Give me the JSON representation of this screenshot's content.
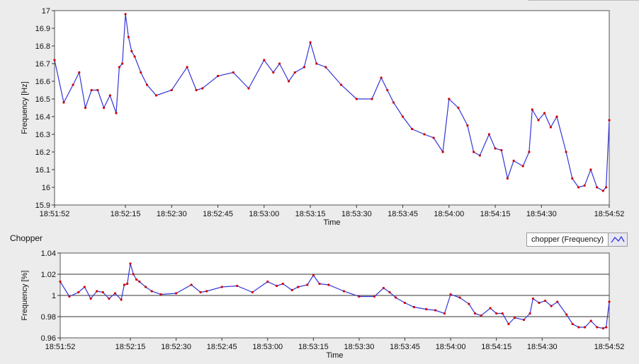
{
  "colors": {
    "line": "#3535d8",
    "marker": "#d00000",
    "plot_bg": "#ffffff",
    "panel_bg": "#ececec",
    "grid": "#333333"
  },
  "chart_data": [
    {
      "type": "line",
      "name_text": "",
      "xlabel": "Time",
      "ylabel": "Frequency [Hz]",
      "ylim": [
        15.9,
        17.0
      ],
      "yticks": [
        "15.9",
        "16",
        "16.1",
        "16.2",
        "16.3",
        "16.4",
        "16.5",
        "16.6",
        "16.7",
        "16.8",
        "16.9",
        "17"
      ],
      "xticks": [
        "18:51:52",
        "18:52:15",
        "18:52:30",
        "18:52:45",
        "18:53:00",
        "18:53:15",
        "18:53:30",
        "18:53:45",
        "18:54:00",
        "18:54:15",
        "18:54:30",
        "18:54:52"
      ],
      "xlim": [
        "18:51:52",
        "18:54:52"
      ],
      "grid": false,
      "series": [
        {
          "x": [
            "18:51:52",
            "18:51:55",
            "18:51:58",
            "18:52:00",
            "18:52:02",
            "18:52:04",
            "18:52:06",
            "18:52:08",
            "18:52:10",
            "18:52:12",
            "18:52:13",
            "18:52:14",
            "18:52:15",
            "18:52:16",
            "18:52:17",
            "18:52:18",
            "18:52:20",
            "18:52:22",
            "18:52:25",
            "18:52:30",
            "18:52:35",
            "18:52:38",
            "18:52:40",
            "18:52:45",
            "18:52:50",
            "18:52:55",
            "18:53:00",
            "18:53:03",
            "18:53:05",
            "18:53:08",
            "18:53:10",
            "18:53:13",
            "18:53:15",
            "18:53:17",
            "18:53:20",
            "18:53:25",
            "18:53:30",
            "18:53:35",
            "18:53:38",
            "18:53:40",
            "18:53:42",
            "18:53:45",
            "18:53:48",
            "18:53:52",
            "18:53:55",
            "18:53:58",
            "18:54:00",
            "18:54:03",
            "18:54:06",
            "18:54:08",
            "18:54:10",
            "18:54:13",
            "18:54:15",
            "18:54:17",
            "18:54:19",
            "18:54:21",
            "18:54:24",
            "18:54:26",
            "18:54:27",
            "18:54:29",
            "18:54:31",
            "18:54:33",
            "18:54:35",
            "18:54:38",
            "18:54:40",
            "18:54:42",
            "18:54:44",
            "18:54:46",
            "18:54:48",
            "18:54:50",
            "18:54:51",
            "18:54:52"
          ],
          "values": [
            16.72,
            16.48,
            16.58,
            16.65,
            16.45,
            16.55,
            16.55,
            16.45,
            16.52,
            16.42,
            16.68,
            16.7,
            16.98,
            16.85,
            16.77,
            16.74,
            16.65,
            16.58,
            16.52,
            16.55,
            16.68,
            16.55,
            16.56,
            16.63,
            16.65,
            16.56,
            16.72,
            16.65,
            16.7,
            16.6,
            16.65,
            16.68,
            16.82,
            16.7,
            16.68,
            16.58,
            16.5,
            16.5,
            16.62,
            16.55,
            16.48,
            16.4,
            16.33,
            16.3,
            16.28,
            16.2,
            16.5,
            16.45,
            16.35,
            16.2,
            16.18,
            16.3,
            16.22,
            16.21,
            16.05,
            16.15,
            16.12,
            16.2,
            16.44,
            16.38,
            16.42,
            16.34,
            16.4,
            16.2,
            16.05,
            16.0,
            16.01,
            16.1,
            16.0,
            15.98,
            16.0,
            16.38
          ]
        }
      ]
    },
    {
      "type": "line",
      "title": "Chopper",
      "xlabel": "Time",
      "ylabel": "Frequency [%]",
      "ylim": [
        0.96,
        1.04
      ],
      "yticks": [
        "0.96",
        "0.98",
        "1",
        "1.02",
        "1.04"
      ],
      "xticks": [
        "18:51:52",
        "18:52:15",
        "18:52:30",
        "18:52:45",
        "18:53:00",
        "18:53:15",
        "18:53:30",
        "18:53:45",
        "18:54:00",
        "18:54:15",
        "18:54:30",
        "18:54:52"
      ],
      "xlim": [
        "18:51:52",
        "18:54:52"
      ],
      "grid": true,
      "legend": {
        "label": "chopper (Frequency)",
        "position": "top-right"
      },
      "series": [
        {
          "name": "chopper (Frequency)",
          "x": [
            "18:51:52",
            "18:51:55",
            "18:51:58",
            "18:52:00",
            "18:52:02",
            "18:52:04",
            "18:52:06",
            "18:52:08",
            "18:52:10",
            "18:52:12",
            "18:52:13",
            "18:52:14",
            "18:52:15",
            "18:52:16",
            "18:52:17",
            "18:52:18",
            "18:52:20",
            "18:52:22",
            "18:52:25",
            "18:52:30",
            "18:52:35",
            "18:52:38",
            "18:52:40",
            "18:52:45",
            "18:52:50",
            "18:52:55",
            "18:53:00",
            "18:53:03",
            "18:53:05",
            "18:53:08",
            "18:53:10",
            "18:53:13",
            "18:53:15",
            "18:53:17",
            "18:53:20",
            "18:53:25",
            "18:53:30",
            "18:53:35",
            "18:53:38",
            "18:53:40",
            "18:53:42",
            "18:53:45",
            "18:53:48",
            "18:53:52",
            "18:53:55",
            "18:53:58",
            "18:54:00",
            "18:54:03",
            "18:54:06",
            "18:54:08",
            "18:54:10",
            "18:54:13",
            "18:54:15",
            "18:54:17",
            "18:54:19",
            "18:54:21",
            "18:54:24",
            "18:54:26",
            "18:54:27",
            "18:54:29",
            "18:54:31",
            "18:54:33",
            "18:54:35",
            "18:54:38",
            "18:54:40",
            "18:54:42",
            "18:54:44",
            "18:54:46",
            "18:54:48",
            "18:54:50",
            "18:54:51",
            "18:54:52"
          ],
          "values": [
            1.013,
            0.999,
            1.003,
            1.008,
            0.997,
            1.004,
            1.003,
            0.997,
            1.002,
            0.996,
            1.01,
            1.011,
            1.03,
            1.02,
            1.015,
            1.013,
            1.008,
            1.004,
            1.001,
            1.002,
            1.01,
            1.003,
            1.004,
            1.008,
            1.009,
            1.003,
            1.013,
            1.009,
            1.011,
            1.005,
            1.008,
            1.01,
            1.019,
            1.011,
            1.01,
            1.004,
            0.999,
            0.999,
            1.007,
            1.003,
            0.998,
            0.993,
            0.989,
            0.987,
            0.986,
            0.983,
            1.001,
            0.998,
            0.992,
            0.983,
            0.981,
            0.988,
            0.983,
            0.983,
            0.973,
            0.979,
            0.977,
            0.983,
            0.997,
            0.993,
            0.995,
            0.99,
            0.994,
            0.982,
            0.973,
            0.97,
            0.97,
            0.976,
            0.97,
            0.969,
            0.97,
            0.994
          ]
        }
      ]
    }
  ]
}
